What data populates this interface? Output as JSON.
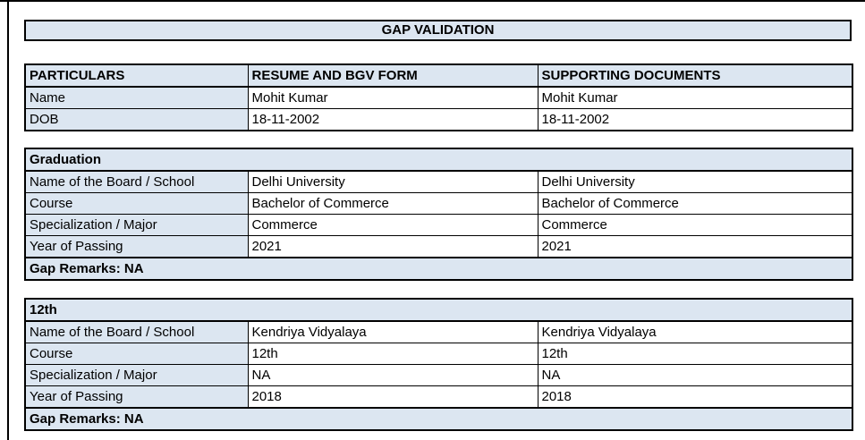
{
  "page": {
    "title": "GAP VALIDATION",
    "colors": {
      "section_fill": "#dce6f1",
      "border": "#000000",
      "background": "#ffffff"
    }
  },
  "columns": [
    "PARTICULARS",
    "RESUME AND BGV FORM",
    "SUPPORTING DOCUMENTS"
  ],
  "personal": {
    "rows": [
      {
        "label": "Name",
        "resume": "Mohit Kumar",
        "supporting": "Mohit Kumar"
      },
      {
        "label": "DOB",
        "resume": "18-11-2002",
        "supporting": "18-11-2002"
      }
    ]
  },
  "sections": [
    {
      "title": "Graduation",
      "rows": [
        {
          "label": "Name of the Board / School",
          "resume": "Delhi University",
          "supporting": "Delhi University"
        },
        {
          "label": "Course",
          "resume": "Bachelor of Commerce",
          "supporting": "Bachelor of Commerce"
        },
        {
          "label": "Specialization / Major",
          "resume": "Commerce",
          "supporting": "Commerce"
        },
        {
          "label": "Year of Passing",
          "resume": "2021",
          "supporting": "2021"
        }
      ],
      "gap_remarks": "Gap Remarks: NA"
    },
    {
      "title": "12th",
      "rows": [
        {
          "label": "Name of the Board / School",
          "resume": "Kendriya Vidyalaya",
          "supporting": "Kendriya Vidyalaya"
        },
        {
          "label": "Course",
          "resume": "12th",
          "supporting": "12th"
        },
        {
          "label": "Specialization / Major",
          "resume": "NA",
          "supporting": "NA"
        },
        {
          "label": "Year of Passing",
          "resume": "2018",
          "supporting": "2018"
        }
      ],
      "gap_remarks": "Gap Remarks: NA"
    }
  ]
}
